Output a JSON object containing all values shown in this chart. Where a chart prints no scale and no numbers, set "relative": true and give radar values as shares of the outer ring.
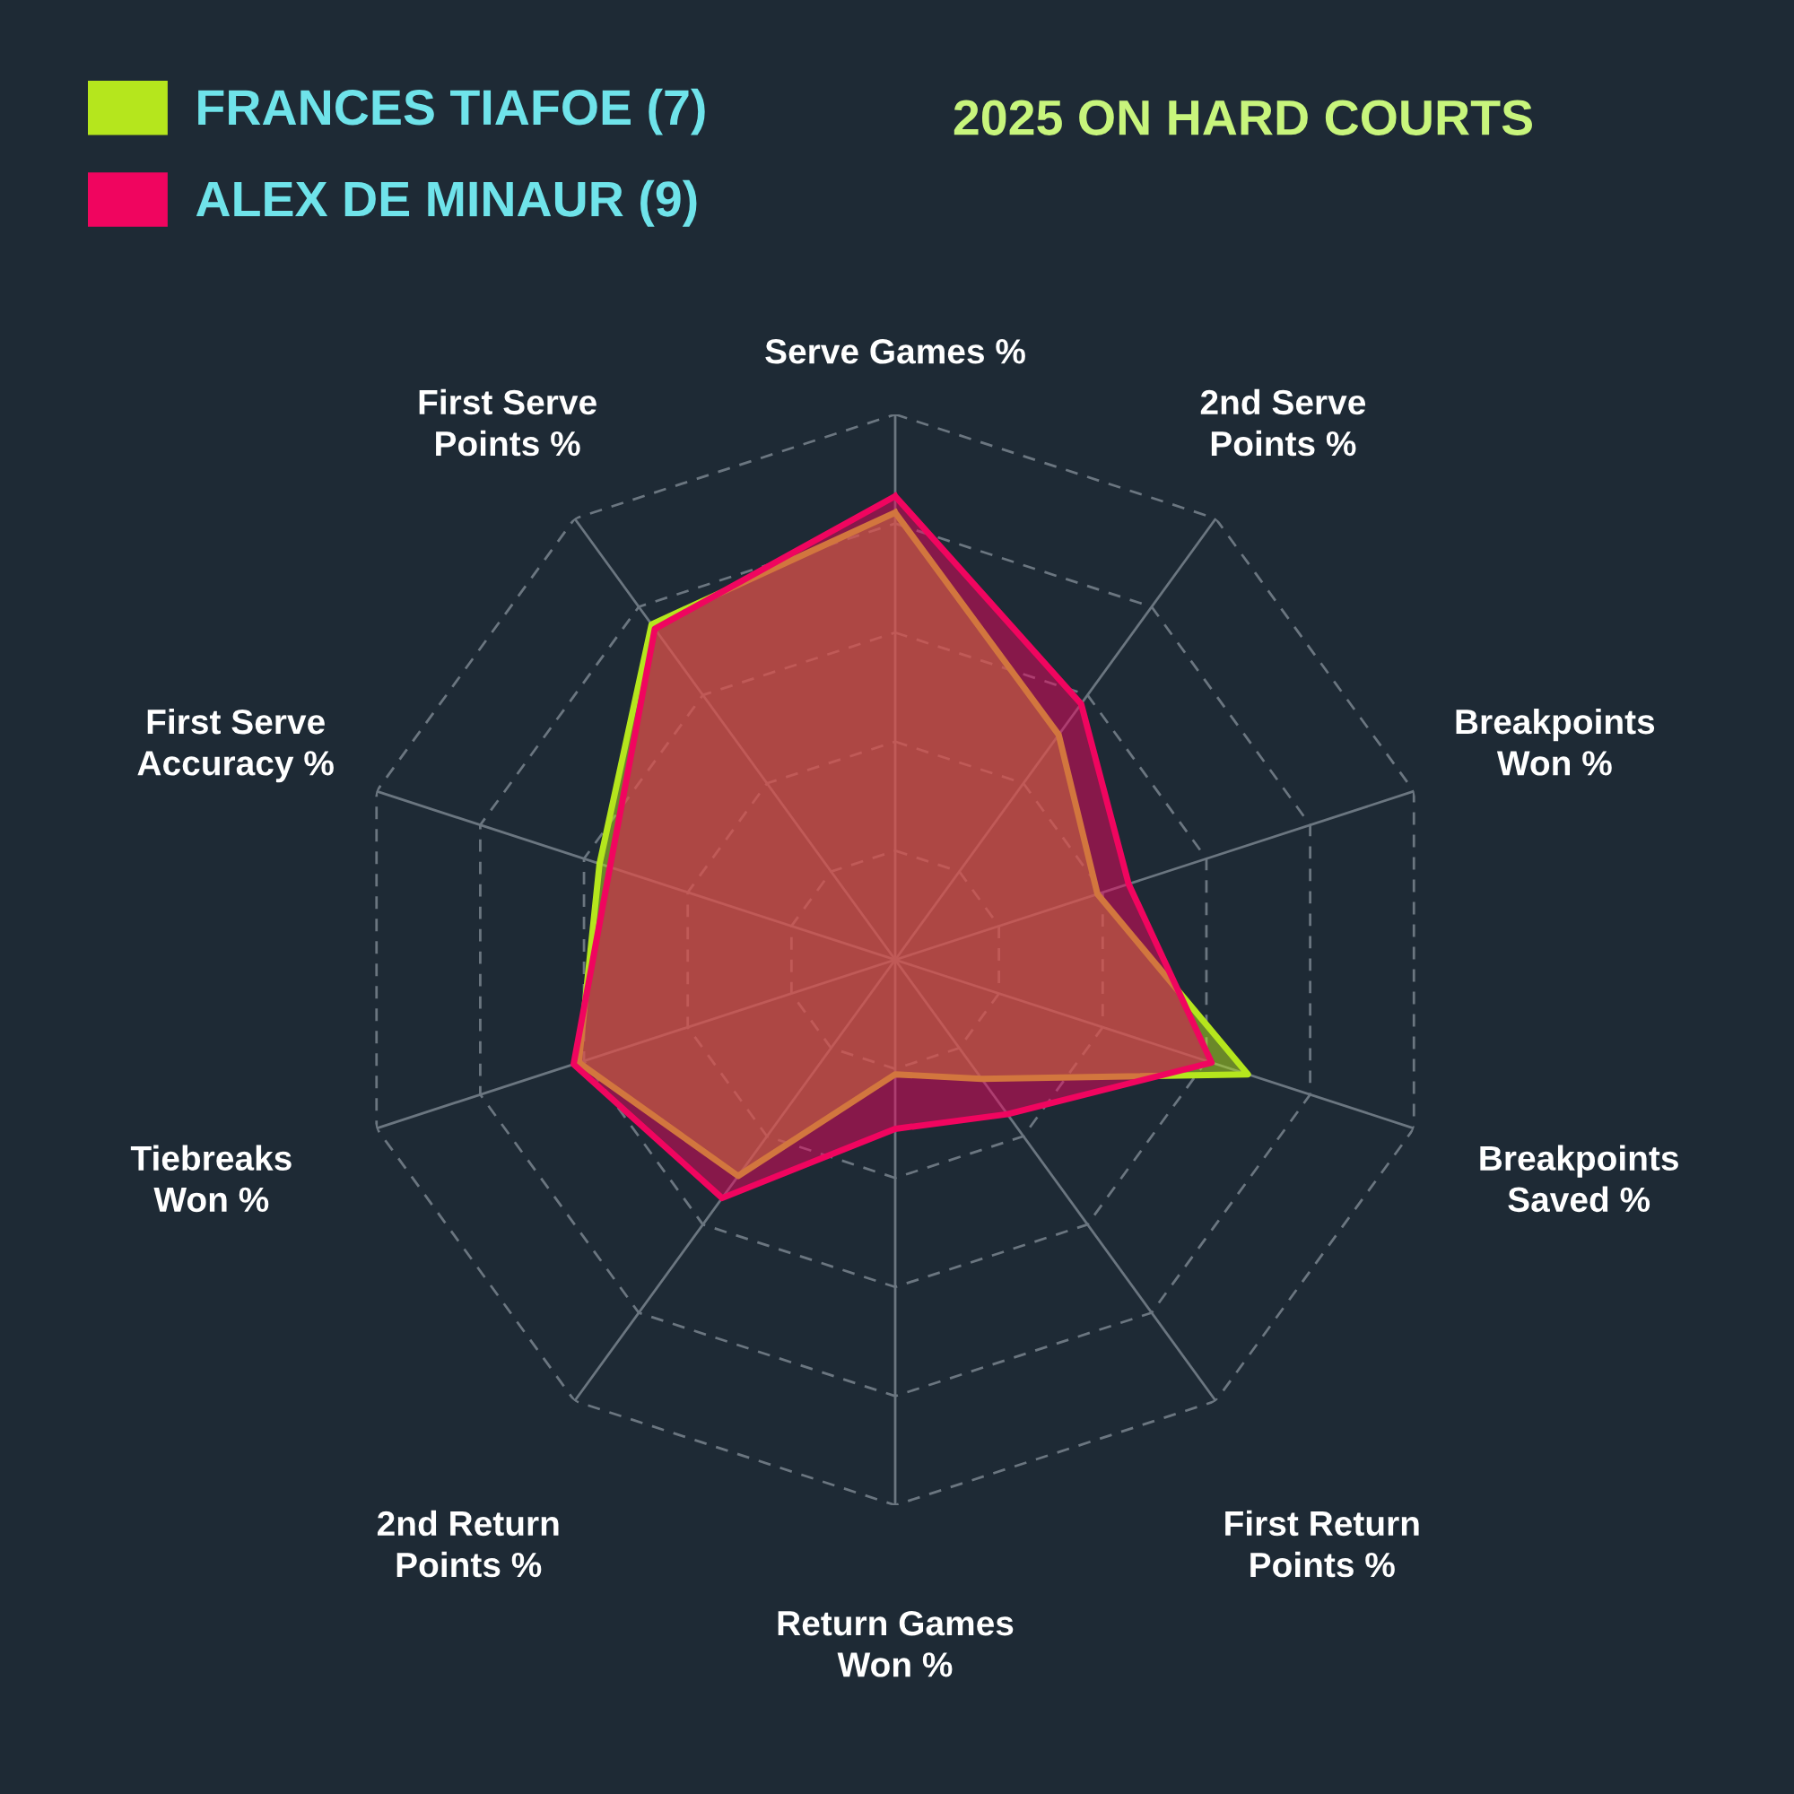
{
  "chart_data": {
    "type": "radar",
    "title": "2025 ON HARD COURTS",
    "relative": true,
    "categories": [
      "Serve Games %",
      "2nd Serve\nPoints %",
      "Breakpoints\nWon %",
      "Breakpoints\nSaved %",
      "First Return\nPoints %",
      "Return Games\nWon %",
      "2nd Return\nPoints %",
      "Tiebreaks\nWon %",
      "First Serve\nAccuracy %",
      "First Serve\nPoints %"
    ],
    "series": [
      {
        "name": "FRANCES TIAFOE (7)",
        "color": "#b5e61d",
        "values": [
          0.82,
          0.51,
          0.39,
          0.68,
          0.27,
          0.21,
          0.49,
          0.61,
          0.57,
          0.76
        ]
      },
      {
        "name": "ALEX DE MINAUR (9)",
        "color": "#f0055f",
        "values": [
          0.85,
          0.58,
          0.45,
          0.61,
          0.35,
          0.31,
          0.54,
          0.62,
          0.55,
          0.75
        ]
      }
    ],
    "grid": true,
    "legend": "top left",
    "line_style": "solid"
  }
}
